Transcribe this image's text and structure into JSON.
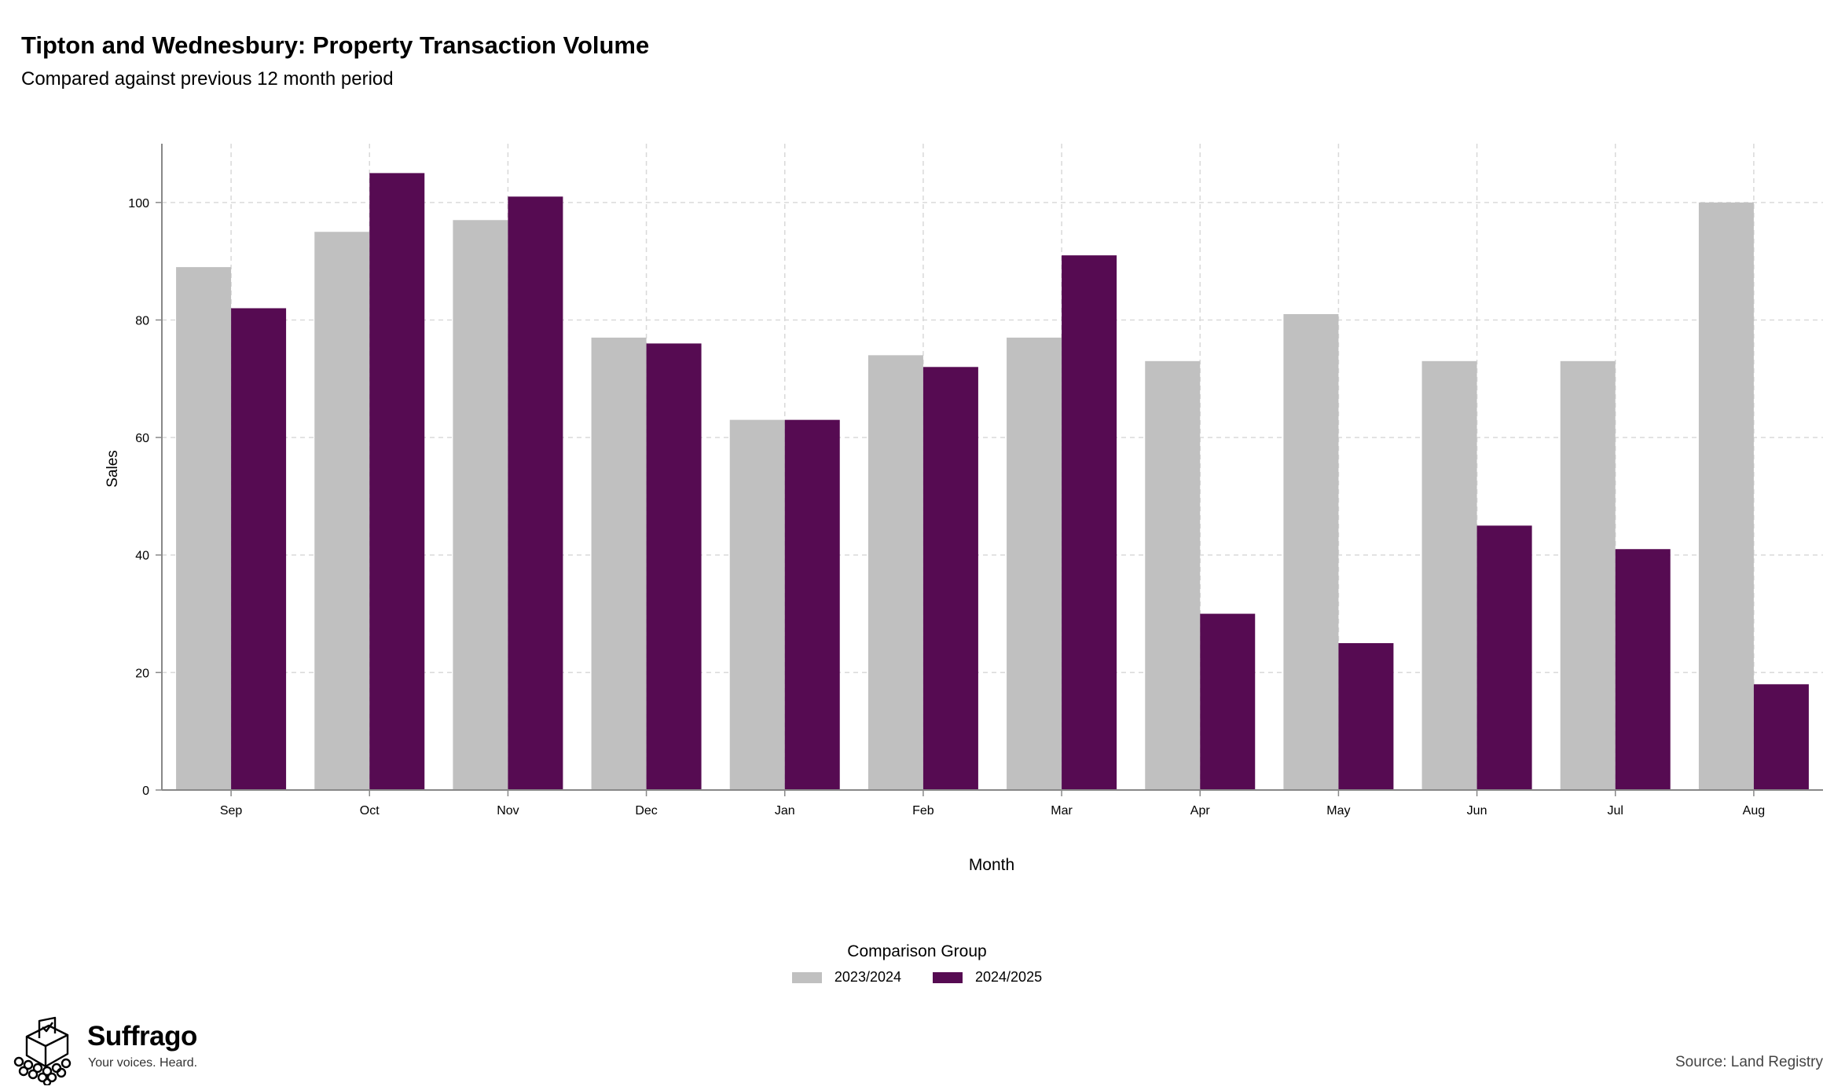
{
  "header": {
    "title": "Tipton and Wednesbury: Property Transaction Volume",
    "subtitle": "Compared against previous 12 month period"
  },
  "legend": {
    "title": "Comparison Group",
    "placement": "bottom-center",
    "items": [
      {
        "label": "2023/2024",
        "color": "#c0c0c0"
      },
      {
        "label": "2024/2025",
        "color": "#560b52"
      }
    ]
  },
  "brand": {
    "name": "Suffrago",
    "tagline": "Your voices. Heard.",
    "icon": "ballot-box-icon"
  },
  "source": "Source: Land Registry",
  "chart_data": {
    "type": "bar",
    "title": "Tipton and Wednesbury: Property Transaction Volume",
    "subtitle": "Compared against previous 12 month period",
    "xlabel": "Month",
    "ylabel": "Sales",
    "categories": [
      "Sep",
      "Oct",
      "Nov",
      "Dec",
      "Jan",
      "Feb",
      "Mar",
      "Apr",
      "May",
      "Jun",
      "Jul",
      "Aug"
    ],
    "series": [
      {
        "name": "2023/2024",
        "color": "#c0c0c0",
        "values": [
          89,
          95,
          97,
          77,
          63,
          74,
          77,
          73,
          81,
          73,
          73,
          100
        ]
      },
      {
        "name": "2024/2025",
        "color": "#560b52",
        "values": [
          82,
          105,
          101,
          76,
          63,
          72,
          91,
          30,
          25,
          45,
          41,
          18
        ]
      }
    ],
    "ylim": [
      0,
      110
    ],
    "yticks": [
      0,
      20,
      40,
      60,
      80,
      100
    ],
    "grid": true,
    "legend_title": "Comparison Group",
    "legend_position": "bottom"
  }
}
